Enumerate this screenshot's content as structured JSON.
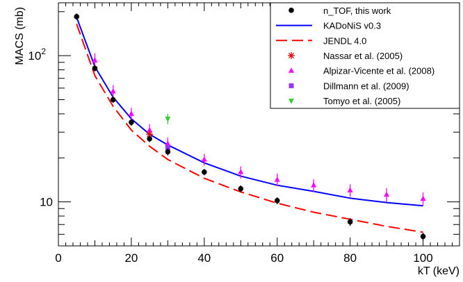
{
  "chart_data": {
    "type": "scatter",
    "xlabel": "kT (keV)",
    "ylabel": "MACS (mb)",
    "xlim": [
      0,
      110
    ],
    "ylim": [
      5,
      230
    ],
    "y_scale": "log",
    "x_ticks": [
      0,
      20,
      40,
      60,
      80,
      100
    ],
    "y_tick_labels": [
      {
        "value": 10,
        "label": "10"
      },
      {
        "value": 100,
        "label": "10",
        "exponent": "2"
      }
    ],
    "legend_position": "top-right",
    "series": [
      {
        "name": "n_TOF, this work",
        "kind": "points",
        "marker": "circle",
        "color": "#000000",
        "x": [
          5,
          10,
          15,
          20,
          25,
          30,
          40,
          50,
          60,
          80,
          100
        ],
        "y": [
          185,
          82,
          50,
          35,
          27,
          22,
          16,
          12.3,
          10.2,
          7.3,
          5.8
        ],
        "err": [
          9,
          4,
          2.5,
          1.8,
          1.4,
          1.2,
          0.8,
          0.65,
          0.55,
          0.45,
          0.35
        ]
      },
      {
        "name": "KADoNiS v0.3",
        "kind": "line",
        "style": "solid",
        "color": "#0000ff",
        "x": [
          5,
          10,
          15,
          20,
          25,
          30,
          40,
          50,
          60,
          70,
          80,
          90,
          100
        ],
        "y": [
          183,
          84,
          52,
          37,
          29,
          24.5,
          18.5,
          15,
          13,
          11.8,
          10.6,
          9.9,
          9.4
        ]
      },
      {
        "name": "JENDL 4.0",
        "kind": "line",
        "style": "dashed",
        "color": "#ff0000",
        "x": [
          5,
          10,
          15,
          20,
          25,
          30,
          40,
          50,
          60,
          70,
          80,
          90,
          100
        ],
        "y": [
          165,
          73,
          45,
          31,
          24,
          19.5,
          14.5,
          11.7,
          9.8,
          8.5,
          7.6,
          6.8,
          6.2
        ]
      },
      {
        "name": "Nassar et al. (2005)",
        "kind": "points",
        "marker": "star",
        "color": "#dd0000",
        "x": [
          25
        ],
        "y": [
          29
        ],
        "err": [
          1.2
        ]
      },
      {
        "name": "Alpizar-Vicente et al. (2008)",
        "kind": "points",
        "marker": "triangle-up",
        "color": "#ff00ff",
        "x": [
          10,
          15,
          20,
          25,
          30,
          40,
          50,
          60,
          70,
          80,
          90,
          100
        ],
        "y": [
          93,
          57,
          40,
          31,
          25,
          19.5,
          16,
          14.2,
          13,
          12,
          11.2,
          10.5
        ],
        "err": [
          11,
          6,
          4,
          3,
          2.5,
          1.8,
          1.5,
          1.4,
          1.3,
          1.2,
          1.2,
          1.1
        ]
      },
      {
        "name": "Dillmann et al. (2009)",
        "kind": "points",
        "marker": "square",
        "color": "#9933ff",
        "x": [
          30
        ],
        "y": [
          23.5
        ],
        "err": [
          1.5
        ]
      },
      {
        "name": "Tomyo et al. (2005)",
        "kind": "points",
        "marker": "triangle-down",
        "color": "#33cc33",
        "x": [
          30
        ],
        "y": [
          37
        ],
        "err": [
          3
        ]
      }
    ]
  }
}
